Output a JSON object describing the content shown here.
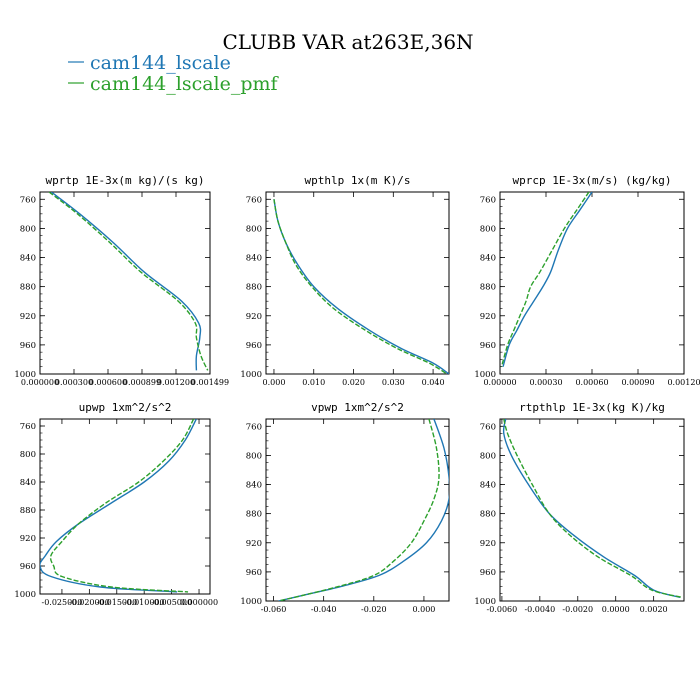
{
  "figure": {
    "title": "CLUBB VAR at263E,36N"
  },
  "legend": [
    {
      "label": "cam144_lscale",
      "color": "#1f77b4"
    },
    {
      "label": "cam144_lscale_pmf",
      "color": "#2ca02c"
    }
  ],
  "chart_data": [
    {
      "type": "line",
      "title": "wprtp 1E-3x(m kg)/(s kg)",
      "xlim": [
        0.0,
        0.0015
      ],
      "ylim": [
        1000,
        750
      ],
      "yticks": [
        760,
        800,
        840,
        880,
        920,
        960,
        1000
      ],
      "xticks": [
        0.0,
        0.0003,
        0.0006,
        0.0009,
        0.0012,
        0.0015
      ],
      "xticklabels": [
        "0.000000",
        "0.000300",
        "0.000600",
        "0.000899",
        "0.001200",
        "0.001499"
      ],
      "series": [
        {
          "name": "cam144_lscale",
          "color": "#1f77b4",
          "dashed": false,
          "points": [
            [
              0.0001,
              750
            ],
            [
              0.00035,
              780
            ],
            [
              0.00065,
              820
            ],
            [
              0.00092,
              860
            ],
            [
              0.00125,
              900
            ],
            [
              0.0014,
              930
            ],
            [
              0.00141,
              950
            ],
            [
              0.00138,
              975
            ],
            [
              0.00138,
              995
            ]
          ]
        },
        {
          "name": "cam144_lscale_pmf",
          "color": "#2ca02c",
          "dashed": true,
          "points": [
            [
              8e-05,
              750
            ],
            [
              0.00033,
              780
            ],
            [
              0.00062,
              820
            ],
            [
              0.00089,
              860
            ],
            [
              0.00122,
              900
            ],
            [
              0.00137,
              930
            ],
            [
              0.00138,
              950
            ],
            [
              0.00142,
              975
            ],
            [
              0.00148,
              995
            ]
          ]
        }
      ]
    },
    {
      "type": "line",
      "title": "wpthlp 1x(m K)/s",
      "xlim": [
        -0.002,
        0.044
      ],
      "ylim": [
        1000,
        750
      ],
      "yticks": [
        760,
        800,
        840,
        880,
        920,
        960,
        1000
      ],
      "xticks": [
        0.0,
        0.01,
        0.02,
        0.03,
        0.04
      ],
      "xticklabels": [
        "0.000",
        "0.010",
        "0.020",
        "0.030",
        "0.040"
      ],
      "series": [
        {
          "name": "cam144_lscale",
          "color": "#1f77b4",
          "dashed": false,
          "points": [
            [
              0.0,
              760
            ],
            [
              0.001,
              790
            ],
            [
              0.003,
              820
            ],
            [
              0.006,
              850
            ],
            [
              0.01,
              880
            ],
            [
              0.016,
              910
            ],
            [
              0.024,
              940
            ],
            [
              0.032,
              965
            ],
            [
              0.04,
              985
            ],
            [
              0.044,
              1000
            ]
          ]
        },
        {
          "name": "cam144_lscale_pmf",
          "color": "#2ca02c",
          "dashed": true,
          "points": [
            [
              0.0,
              760
            ],
            [
              0.001,
              790
            ],
            [
              0.003,
              820
            ],
            [
              0.0055,
              850
            ],
            [
              0.0095,
              880
            ],
            [
              0.015,
              910
            ],
            [
              0.023,
              940
            ],
            [
              0.031,
              965
            ],
            [
              0.039,
              985
            ],
            [
              0.0435,
              1000
            ]
          ]
        }
      ]
    },
    {
      "type": "line",
      "title": "wprcp 1E-3x(m/s) (kg/kg)",
      "xlim": [
        0.0,
        0.0012
      ],
      "ylim": [
        1000,
        750
      ],
      "yticks": [
        760,
        800,
        840,
        880,
        920,
        960,
        1000
      ],
      "xticks": [
        0.0,
        0.0003,
        0.0006,
        0.0009,
        0.0012
      ],
      "xticklabels": [
        "0.00000",
        "0.00030",
        "0.00060",
        "0.00090",
        "0.00120"
      ],
      "series": [
        {
          "name": "cam144_lscale",
          "color": "#1f77b4",
          "dashed": false,
          "points": [
            [
              0.0006,
              750
            ],
            [
              0.00052,
              775
            ],
            [
              0.00044,
              800
            ],
            [
              0.00038,
              830
            ],
            [
              0.00033,
              860
            ],
            [
              0.00028,
              880
            ],
            [
              0.00022,
              900
            ],
            [
              0.00016,
              920
            ],
            [
              0.00011,
              940
            ],
            [
              6e-05,
              960
            ],
            [
              2e-05,
              990
            ]
          ]
        },
        {
          "name": "cam144_lscale_pmf",
          "color": "#2ca02c",
          "dashed": true,
          "points": [
            [
              0.00058,
              750
            ],
            [
              0.0005,
              775
            ],
            [
              0.00042,
              800
            ],
            [
              0.00034,
              830
            ],
            [
              0.00026,
              860
            ],
            [
              0.0002,
              880
            ],
            [
              0.00017,
              900
            ],
            [
              0.00013,
              920
            ],
            [
              9e-05,
              940
            ],
            [
              5e-05,
              960
            ],
            [
              1e-05,
              990
            ]
          ]
        }
      ]
    },
    {
      "type": "line",
      "title": "upwp 1xm^2/s^2",
      "xlim": [
        -0.029,
        0.002
      ],
      "ylim": [
        1000,
        750
      ],
      "yticks": [
        760,
        800,
        840,
        880,
        920,
        960,
        1000
      ],
      "xticks": [
        -0.025,
        -0.02,
        -0.015,
        -0.01,
        -0.005,
        0.0
      ],
      "xticklabels": [
        "-0.025000",
        "-0.020000",
        "-0.015000",
        "-0.010000",
        "-0.005000",
        "0.000000"
      ],
      "series": [
        {
          "name": "cam144_lscale",
          "color": "#1f77b4",
          "dashed": false,
          "points": [
            [
              -0.0005,
              750
            ],
            [
              -0.0025,
              780
            ],
            [
              -0.0055,
              810
            ],
            [
              -0.01,
              840
            ],
            [
              -0.016,
              870
            ],
            [
              -0.022,
              900
            ],
            [
              -0.026,
              925
            ],
            [
              -0.028,
              945
            ],
            [
              -0.029,
              960
            ],
            [
              -0.027,
              975
            ],
            [
              -0.018,
              990
            ],
            [
              -0.004,
              997
            ]
          ]
        },
        {
          "name": "cam144_lscale_pmf",
          "color": "#2ca02c",
          "dashed": true,
          "points": [
            [
              -0.001,
              750
            ],
            [
              -0.003,
              780
            ],
            [
              -0.0065,
              810
            ],
            [
              -0.011,
              840
            ],
            [
              -0.017,
              870
            ],
            [
              -0.022,
              900
            ],
            [
              -0.025,
              925
            ],
            [
              -0.027,
              945
            ],
            [
              -0.0265,
              960
            ],
            [
              -0.025,
              975
            ],
            [
              -0.016,
              990
            ],
            [
              -0.002,
              997
            ]
          ]
        }
      ]
    },
    {
      "type": "line",
      "title": "vpwp 1xm^2/s^2",
      "xlim": [
        -0.063,
        0.01
      ],
      "ylim": [
        1000,
        750
      ],
      "yticks": [
        760,
        800,
        840,
        880,
        920,
        960,
        1000
      ],
      "xticks": [
        -0.06,
        -0.04,
        -0.02,
        0.0
      ],
      "xticklabels": [
        "-0.060",
        "-0.040",
        "-0.020",
        "0.000"
      ],
      "series": [
        {
          "name": "cam144_lscale",
          "color": "#1f77b4",
          "dashed": false,
          "points": [
            [
              0.004,
              750
            ],
            [
              0.008,
              790
            ],
            [
              0.01,
              830
            ],
            [
              0.01,
              860
            ],
            [
              0.007,
              890
            ],
            [
              0.001,
              920
            ],
            [
              -0.008,
              945
            ],
            [
              -0.018,
              965
            ],
            [
              -0.033,
              980
            ],
            [
              -0.048,
              992
            ],
            [
              -0.058,
              1000
            ]
          ]
        },
        {
          "name": "cam144_lscale_pmf",
          "color": "#2ca02c",
          "dashed": true,
          "points": [
            [
              0.002,
              750
            ],
            [
              0.005,
              790
            ],
            [
              0.006,
              830
            ],
            [
              0.004,
              860
            ],
            [
              0.0,
              890
            ],
            [
              -0.005,
              920
            ],
            [
              -0.012,
              945
            ],
            [
              -0.02,
              965
            ],
            [
              -0.034,
              980
            ],
            [
              -0.048,
              992
            ],
            [
              -0.058,
              1000
            ]
          ]
        }
      ]
    },
    {
      "type": "line",
      "title": "rtpthlp 1E-3x(kg K)/kg",
      "xlim": [
        -0.0061,
        0.0036
      ],
      "ylim": [
        1000,
        750
      ],
      "yticks": [
        760,
        800,
        840,
        880,
        920,
        960,
        1000
      ],
      "xticks": [
        -0.006,
        -0.004,
        -0.002,
        0.0,
        0.002
      ],
      "xticklabels": [
        "-0.0060",
        "-0.0040",
        "-0.0020",
        "0.0000",
        "0.0020"
      ],
      "series": [
        {
          "name": "cam144_lscale",
          "color": "#1f77b4",
          "dashed": false,
          "points": [
            [
              -0.0058,
              750
            ],
            [
              -0.0059,
              770
            ],
            [
              -0.0055,
              800
            ],
            [
              -0.0046,
              840
            ],
            [
              -0.0035,
              880
            ],
            [
              -0.0022,
              910
            ],
            [
              -0.0006,
              940
            ],
            [
              0.001,
              965
            ],
            [
              0.002,
              985
            ],
            [
              0.0034,
              995
            ]
          ]
        },
        {
          "name": "cam144_lscale_pmf",
          "color": "#2ca02c",
          "dashed": true,
          "points": [
            [
              -0.0059,
              750
            ],
            [
              -0.0057,
              770
            ],
            [
              -0.0052,
              800
            ],
            [
              -0.0044,
              840
            ],
            [
              -0.0035,
              880
            ],
            [
              -0.0024,
              910
            ],
            [
              -0.0009,
              940
            ],
            [
              0.0008,
              965
            ],
            [
              0.0019,
              985
            ],
            [
              0.0035,
              995
            ]
          ]
        }
      ]
    }
  ]
}
